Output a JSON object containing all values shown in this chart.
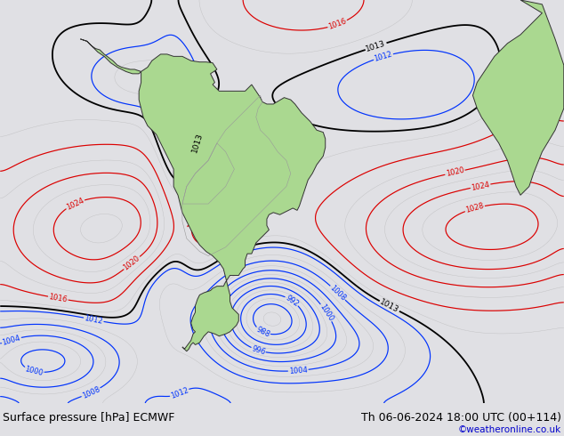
{
  "title_left": "Surface pressure [hPa] ECMWF",
  "title_right": "Th 06-06-2024 18:00 UTC (00+114)",
  "copyright": "©weatheronline.co.uk",
  "bg_color": "#e0e0e4",
  "land_color": "#aad890",
  "map_bg": "#dcdce2",
  "figsize": [
    6.34,
    4.9
  ],
  "dpi": 100,
  "bottom_bar_color": "#f2f2f2",
  "title_fontsize": 9,
  "copyright_color": "#0000cc",
  "xlim": [
    -110,
    20
  ],
  "ylim": [
    -68,
    25
  ]
}
